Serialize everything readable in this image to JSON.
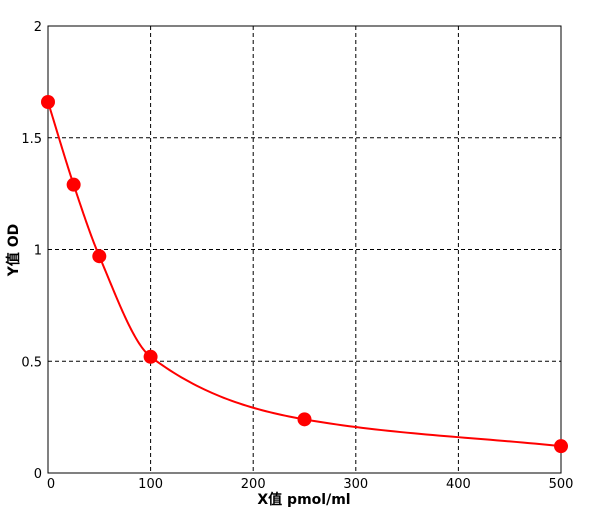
{
  "chart_data": {
    "type": "scatter",
    "title": "",
    "xlabel": "X值 pmol/ml",
    "ylabel": "Y值 OD",
    "xlim": [
      0,
      500
    ],
    "ylim": [
      0,
      2
    ],
    "x_ticks": [
      0,
      100,
      200,
      300,
      400,
      500
    ],
    "y_ticks": [
      0,
      0.5,
      1,
      1.5,
      2
    ],
    "x_tick_labels": [
      "0",
      "100",
      "200",
      "300",
      "400",
      "500"
    ],
    "y_tick_labels": [
      "0",
      "0.5",
      "1",
      "1.5",
      "2"
    ],
    "grid": true,
    "legend": "none",
    "series": [
      {
        "x": [
          0,
          25,
          50,
          100,
          250,
          500
        ],
        "y": [
          1.66,
          1.29,
          0.97,
          0.52,
          0.24,
          0.12
        ],
        "color": "#ff0000",
        "fit_line": true
      }
    ]
  }
}
